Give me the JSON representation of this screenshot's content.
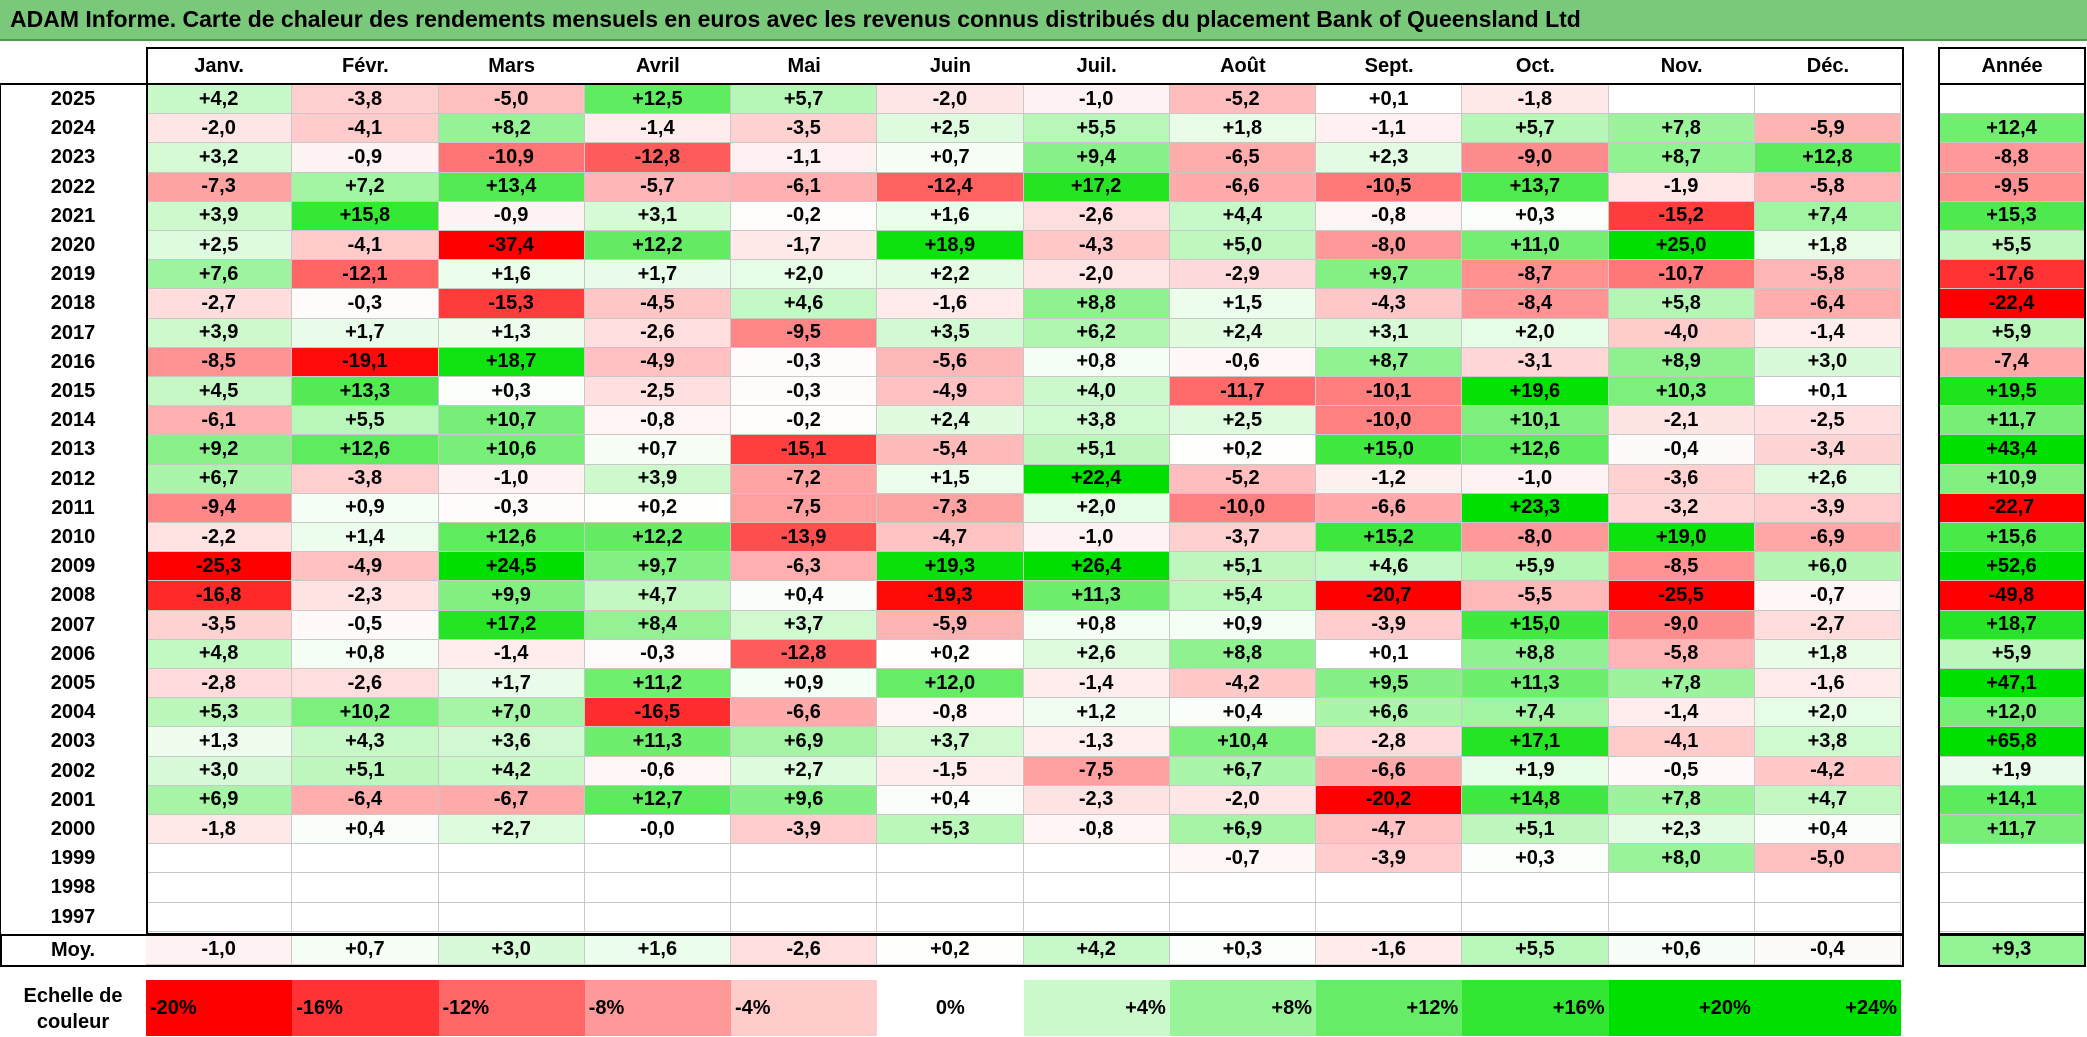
{
  "title": "ADAM Informe. Carte de chaleur des rendements mensuels en euros avec les revenus connus distribués du placement Bank of Queensland Ltd",
  "chart_data": {
    "type": "heatmap",
    "title": "ADAM Informe. Carte de chaleur des rendements mensuels en euros avec les revenus connus distribués du placement Bank of Queensland Ltd",
    "columns": [
      "Janv.",
      "Févr.",
      "Mars",
      "Avril",
      "Mai",
      "Juin",
      "Juil.",
      "Août",
      "Sept.",
      "Oct.",
      "Nov.",
      "Déc."
    ],
    "year_header": "Année",
    "rows": [
      {
        "year": "2025",
        "values": [
          "+4,2",
          "-3,8",
          "-5,0",
          "+12,5",
          "+5,7",
          "-2,0",
          "-1,0",
          "-5,2",
          "+0,1",
          "-1,8",
          "",
          ""
        ],
        "total": ""
      },
      {
        "year": "2024",
        "values": [
          "-2,0",
          "-4,1",
          "+8,2",
          "-1,4",
          "-3,5",
          "+2,5",
          "+5,5",
          "+1,8",
          "-1,1",
          "+5,7",
          "+7,8",
          "-5,9"
        ],
        "total": "+12,4"
      },
      {
        "year": "2023",
        "values": [
          "+3,2",
          "-0,9",
          "-10,9",
          "-12,8",
          "-1,1",
          "+0,7",
          "+9,4",
          "-6,5",
          "+2,3",
          "-9,0",
          "+8,7",
          "+12,8"
        ],
        "total": "-8,8"
      },
      {
        "year": "2022",
        "values": [
          "-7,3",
          "+7,2",
          "+13,4",
          "-5,7",
          "-6,1",
          "-12,4",
          "+17,2",
          "-6,6",
          "-10,5",
          "+13,7",
          "-1,9",
          "-5,8"
        ],
        "total": "-9,5"
      },
      {
        "year": "2021",
        "values": [
          "+3,9",
          "+15,8",
          "-0,9",
          "+3,1",
          "-0,2",
          "+1,6",
          "-2,6",
          "+4,4",
          "-0,8",
          "+0,3",
          "-15,2",
          "+7,4"
        ],
        "total": "+15,3"
      },
      {
        "year": "2020",
        "values": [
          "+2,5",
          "-4,1",
          "-37,4",
          "+12,2",
          "-1,7",
          "+18,9",
          "-4,3",
          "+5,0",
          "-8,0",
          "+11,0",
          "+25,0",
          "+1,8"
        ],
        "total": "+5,5"
      },
      {
        "year": "2019",
        "values": [
          "+7,6",
          "-12,1",
          "+1,6",
          "+1,7",
          "+2,0",
          "+2,2",
          "-2,0",
          "-2,9",
          "+9,7",
          "-8,7",
          "-10,7",
          "-5,8"
        ],
        "total": "-17,6"
      },
      {
        "year": "2018",
        "values": [
          "-2,7",
          "-0,3",
          "-15,3",
          "-4,5",
          "+4,6",
          "-1,6",
          "+8,8",
          "+1,5",
          "-4,3",
          "-8,4",
          "+5,8",
          "-6,4"
        ],
        "total": "-22,4"
      },
      {
        "year": "2017",
        "values": [
          "+3,9",
          "+1,7",
          "+1,3",
          "-2,6",
          "-9,5",
          "+3,5",
          "+6,2",
          "+2,4",
          "+3,1",
          "+2,0",
          "-4,0",
          "-1,4"
        ],
        "total": "+5,9"
      },
      {
        "year": "2016",
        "values": [
          "-8,5",
          "-19,1",
          "+18,7",
          "-4,9",
          "-0,3",
          "-5,6",
          "+0,8",
          "-0,6",
          "+8,7",
          "-3,1",
          "+8,9",
          "+3,0"
        ],
        "total": "-7,4"
      },
      {
        "year": "2015",
        "values": [
          "+4,5",
          "+13,3",
          "+0,3",
          "-2,5",
          "-0,3",
          "-4,9",
          "+4,0",
          "-11,7",
          "-10,1",
          "+19,6",
          "+10,3",
          "+0,1"
        ],
        "total": "+19,5"
      },
      {
        "year": "2014",
        "values": [
          "-6,1",
          "+5,5",
          "+10,7",
          "-0,8",
          "-0,2",
          "+2,4",
          "+3,8",
          "+2,5",
          "-10,0",
          "+10,1",
          "-2,1",
          "-2,5"
        ],
        "total": "+11,7"
      },
      {
        "year": "2013",
        "values": [
          "+9,2",
          "+12,6",
          "+10,6",
          "+0,7",
          "-15,1",
          "-5,4",
          "+5,1",
          "+0,2",
          "+15,0",
          "+12,6",
          "-0,4",
          "-3,4"
        ],
        "total": "+43,4"
      },
      {
        "year": "2012",
        "values": [
          "+6,7",
          "-3,8",
          "-1,0",
          "+3,9",
          "-7,2",
          "+1,5",
          "+22,4",
          "-5,2",
          "-1,2",
          "-1,0",
          "-3,6",
          "+2,6"
        ],
        "total": "+10,9"
      },
      {
        "year": "2011",
        "values": [
          "-9,4",
          "+0,9",
          "-0,3",
          "+0,2",
          "-7,5",
          "-7,3",
          "+2,0",
          "-10,0",
          "-6,6",
          "+23,3",
          "-3,2",
          "-3,9"
        ],
        "total": "-22,7"
      },
      {
        "year": "2010",
        "values": [
          "-2,2",
          "+1,4",
          "+12,6",
          "+12,2",
          "-13,9",
          "-4,7",
          "-1,0",
          "-3,7",
          "+15,2",
          "-8,0",
          "+19,0",
          "-6,9"
        ],
        "total": "+15,6"
      },
      {
        "year": "2009",
        "values": [
          "-25,3",
          "-4,9",
          "+24,5",
          "+9,7",
          "-6,3",
          "+19,3",
          "+26,4",
          "+5,1",
          "+4,6",
          "+5,9",
          "-8,5",
          "+6,0"
        ],
        "total": "+52,6"
      },
      {
        "year": "2008",
        "values": [
          "-16,8",
          "-2,3",
          "+9,9",
          "+4,7",
          "+0,4",
          "-19,3",
          "+11,3",
          "+5,4",
          "-20,7",
          "-5,5",
          "-25,5",
          "-0,7"
        ],
        "total": "-49,8"
      },
      {
        "year": "2007",
        "values": [
          "-3,5",
          "-0,5",
          "+17,2",
          "+8,4",
          "+3,7",
          "-5,9",
          "+0,8",
          "+0,9",
          "-3,9",
          "+15,0",
          "-9,0",
          "-2,7"
        ],
        "total": "+18,7"
      },
      {
        "year": "2006",
        "values": [
          "+4,8",
          "+0,8",
          "-1,4",
          "-0,3",
          "-12,8",
          "+0,2",
          "+2,6",
          "+8,8",
          "+0,1",
          "+8,8",
          "-5,8",
          "+1,8"
        ],
        "total": "+5,9"
      },
      {
        "year": "2005",
        "values": [
          "-2,8",
          "-2,6",
          "+1,7",
          "+11,2",
          "+0,9",
          "+12,0",
          "-1,4",
          "-4,2",
          "+9,5",
          "+11,3",
          "+7,8",
          "-1,6"
        ],
        "total": "+47,1"
      },
      {
        "year": "2004",
        "values": [
          "+5,3",
          "+10,2",
          "+7,0",
          "-16,5",
          "-6,6",
          "-0,8",
          "+1,2",
          "+0,4",
          "+6,6",
          "+7,4",
          "-1,4",
          "+2,0"
        ],
        "total": "+12,0"
      },
      {
        "year": "2003",
        "values": [
          "+1,3",
          "+4,3",
          "+3,6",
          "+11,3",
          "+6,9",
          "+3,7",
          "-1,3",
          "+10,4",
          "-2,8",
          "+17,1",
          "-4,1",
          "+3,8"
        ],
        "total": "+65,8"
      },
      {
        "year": "2002",
        "values": [
          "+3,0",
          "+5,1",
          "+4,2",
          "-0,6",
          "+2,7",
          "-1,5",
          "-7,5",
          "+6,7",
          "-6,6",
          "+1,9",
          "-0,5",
          "-4,2"
        ],
        "total": "+1,9"
      },
      {
        "year": "2001",
        "values": [
          "+6,9",
          "-6,4",
          "-6,7",
          "+12,7",
          "+9,6",
          "+0,4",
          "-2,3",
          "-2,0",
          "-20,2",
          "+14,8",
          "+7,8",
          "+4,7"
        ],
        "total": "+14,1"
      },
      {
        "year": "2000",
        "values": [
          "-1,8",
          "+0,4",
          "+2,7",
          "-0,0",
          "-3,9",
          "+5,3",
          "-0,8",
          "+6,9",
          "-4,7",
          "+5,1",
          "+2,3",
          "+0,4"
        ],
        "total": "+11,7"
      },
      {
        "year": "1999",
        "values": [
          "",
          "",
          "",
          "",
          "",
          "",
          "",
          "-0,7",
          "-3,9",
          "+0,3",
          "+8,0",
          "-5,0"
        ],
        "total": ""
      },
      {
        "year": "1998",
        "values": [
          "",
          "",
          "",
          "",
          "",
          "",
          "",
          "",
          "",
          "",
          "",
          ""
        ],
        "total": ""
      },
      {
        "year": "1997",
        "values": [
          "",
          "",
          "",
          "",
          "",
          "",
          "",
          "",
          "",
          "",
          "",
          ""
        ],
        "total": ""
      }
    ],
    "average_row": {
      "label": "Moy.",
      "values": [
        "-1,0",
        "+0,7",
        "+3,0",
        "+1,6",
        "-2,6",
        "+0,2",
        "+4,2",
        "+0,3",
        "-1,6",
        "+5,5",
        "+0,6",
        "-0,4"
      ],
      "total": "+9,3"
    },
    "color_scale": {
      "label_line1": "Echelle de",
      "label_line2": "couleur",
      "stops": [
        "-20%",
        "-16%",
        "-12%",
        "-8%",
        "-4%",
        "0%",
        "+4%",
        "+8%",
        "+12%",
        "+16%",
        "+20%",
        "+24%"
      ],
      "stop_values": [
        -20,
        -16,
        -12,
        -8,
        -4,
        0,
        4,
        8,
        12,
        16,
        20,
        24
      ],
      "negative_color": "#ff0000",
      "positive_color": "#00e000",
      "neutral_color": "#ffffff"
    }
  }
}
